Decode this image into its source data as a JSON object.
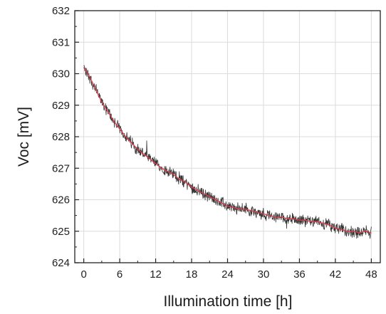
{
  "chart_data": {
    "type": "line",
    "xlabel": "Illumination time [h]",
    "ylabel": "Voc [mV]",
    "xlim": [
      -1.5,
      49.5
    ],
    "ylim": [
      624,
      632
    ],
    "x_ticks": [
      0,
      6,
      12,
      18,
      24,
      30,
      36,
      42,
      48
    ],
    "x_tick_labels": [
      "0",
      "6",
      "12",
      "18",
      "24",
      "30",
      "36",
      "42",
      "48"
    ],
    "y_ticks": [
      624,
      625,
      626,
      627,
      628,
      629,
      630,
      631,
      632
    ],
    "y_tick_labels": [
      "624",
      "625",
      "626",
      "627",
      "628",
      "629",
      "630",
      "631",
      "632"
    ],
    "grid": true,
    "series": [
      {
        "role": "measured data (noisy)",
        "color": "#111111",
        "x": [
          0,
          1,
          2,
          3,
          4,
          5,
          6,
          7,
          8,
          9,
          10,
          11,
          12,
          13,
          14,
          15,
          16,
          17,
          18,
          19,
          20,
          21,
          22,
          23,
          24,
          25,
          26,
          27,
          28,
          29,
          30,
          31,
          32,
          33,
          34,
          35,
          36,
          37,
          38,
          39,
          40,
          41,
          42,
          43,
          44,
          45,
          46,
          47,
          48
        ],
        "y": [
          630.2,
          629.9,
          629.5,
          629.1,
          628.8,
          628.5,
          628.25,
          628.0,
          627.8,
          627.6,
          627.45,
          627.3,
          627.15,
          627.0,
          626.9,
          626.8,
          626.65,
          626.55,
          626.4,
          626.3,
          626.2,
          626.1,
          626.0,
          625.9,
          625.8,
          625.75,
          625.7,
          625.7,
          625.65,
          625.6,
          625.55,
          625.5,
          625.45,
          625.45,
          625.4,
          625.4,
          625.35,
          625.35,
          625.3,
          625.3,
          625.25,
          625.2,
          625.1,
          625.05,
          625.0,
          625.0,
          624.95,
          625.0,
          624.95
        ],
        "noise_amplitude_mV": 0.15
      },
      {
        "role": "smoothed fit",
        "color": "#e23a4a",
        "x": [
          0,
          1,
          2,
          3,
          4,
          5,
          6,
          7,
          8,
          9,
          10,
          11,
          12,
          13,
          14,
          15,
          16,
          17,
          18,
          19,
          20,
          21,
          22,
          23,
          24,
          25,
          26,
          27,
          28,
          29,
          30,
          31,
          32,
          33,
          34,
          35,
          36,
          37,
          38,
          39,
          40,
          41,
          42,
          43,
          44,
          45,
          46,
          47,
          48
        ],
        "y": [
          630.2,
          629.9,
          629.5,
          629.1,
          628.8,
          628.5,
          628.25,
          628.0,
          627.8,
          627.6,
          627.45,
          627.3,
          627.15,
          627.0,
          626.9,
          626.8,
          626.65,
          626.55,
          626.4,
          626.3,
          626.2,
          626.1,
          626.0,
          625.9,
          625.8,
          625.75,
          625.7,
          625.7,
          625.65,
          625.6,
          625.55,
          625.5,
          625.45,
          625.45,
          625.4,
          625.4,
          625.35,
          625.35,
          625.3,
          625.3,
          625.25,
          625.2,
          625.1,
          625.05,
          625.0,
          625.0,
          624.95,
          625.0,
          624.95
        ]
      }
    ]
  }
}
